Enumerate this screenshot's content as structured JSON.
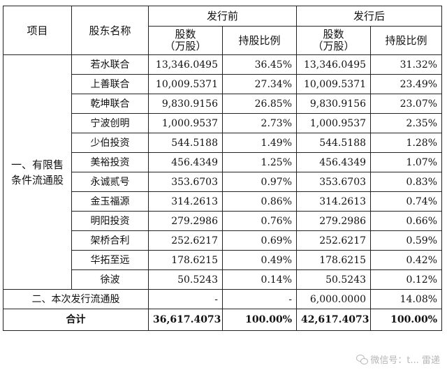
{
  "headers": {
    "item": "项目",
    "shareholder": "股东名称",
    "before": "发行前",
    "after": "发行后",
    "shares": "股数\n（万股）",
    "ratio": "持股比例"
  },
  "restricted_label": "一、有限售条件流通股",
  "rows": [
    {
      "name": "若水联合",
      "before_shares": "13,346.0495",
      "before_ratio": "36.45%",
      "after_shares": "13,346.0495",
      "after_ratio": "31.32%"
    },
    {
      "name": "上善联合",
      "before_shares": "10,009.5371",
      "before_ratio": "27.34%",
      "after_shares": "10,009.5371",
      "after_ratio": "23.49%"
    },
    {
      "name": "乾坤联合",
      "before_shares": "9,830.9156",
      "before_ratio": "26.85%",
      "after_shares": "9,830.9156",
      "after_ratio": "23.07%"
    },
    {
      "name": "宁波创明",
      "before_shares": "1,000.9537",
      "before_ratio": "2.73%",
      "after_shares": "1,000.9537",
      "after_ratio": "2.35%"
    },
    {
      "name": "少伯投资",
      "before_shares": "544.5188",
      "before_ratio": "1.49%",
      "after_shares": "544.5188",
      "after_ratio": "1.28%"
    },
    {
      "name": "美裕投资",
      "before_shares": "456.4349",
      "before_ratio": "1.25%",
      "after_shares": "456.4349",
      "after_ratio": "1.07%"
    },
    {
      "name": "永诚贰号",
      "before_shares": "353.6703",
      "before_ratio": "0.97%",
      "after_shares": "353.6703",
      "after_ratio": "0.83%"
    },
    {
      "name": "金玉福源",
      "before_shares": "314.2613",
      "before_ratio": "0.86%",
      "after_shares": "314.2613",
      "after_ratio": "0.74%"
    },
    {
      "name": "明阳投资",
      "before_shares": "279.2986",
      "before_ratio": "0.76%",
      "after_shares": "279.2986",
      "after_ratio": "0.66%"
    },
    {
      "name": "架桥合利",
      "before_shares": "252.6217",
      "before_ratio": "0.69%",
      "after_shares": "252.6217",
      "after_ratio": "0.59%"
    },
    {
      "name": "华拓至远",
      "before_shares": "178.6215",
      "before_ratio": "0.49%",
      "after_shares": "178.6215",
      "after_ratio": "0.42%"
    },
    {
      "name": "徐波",
      "before_shares": "50.5243",
      "before_ratio": "0.14%",
      "after_shares": "50.5243",
      "after_ratio": "0.12%"
    }
  ],
  "public_row": {
    "label": "二、本次发行流通股",
    "before_shares": "-",
    "before_ratio": "-",
    "after_shares": "6,000.0000",
    "after_ratio": "14.08%"
  },
  "total_row": {
    "label": "合计",
    "before_shares": "36,617.4073",
    "before_ratio": "100.00%",
    "after_shares": "42,617.4073",
    "after_ratio": "100.00%"
  },
  "watermark": {
    "text": "微信号：t... 雷递",
    "icon": "wechat-icon"
  }
}
